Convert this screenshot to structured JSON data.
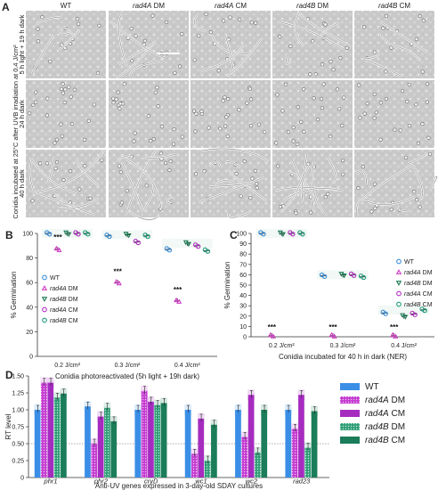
{
  "panel_a": {
    "letter": "A",
    "columns": [
      "WT",
      "rad4A DM",
      "rad4A CM",
      "rad4B DM",
      "rad4B CM"
    ],
    "row_labels": [
      "5 h light + 19 h dark",
      "24 h dark",
      "40 h dark"
    ],
    "side_label": "Conidia incubated at 25°C after UVB irradiation at 0.4 J/cm²",
    "scale_bar": true
  },
  "chart_data": [
    {
      "panel": "B",
      "type": "scatter",
      "title": "",
      "ylabel": "% Germination",
      "xlabel": "Conidia photoreactivated (5h light + 19h dark)",
      "ylim": [
        0,
        100
      ],
      "yticks": [
        0,
        20,
        40,
        60,
        80,
        100
      ],
      "categories": [
        "0.2 J/cm²",
        "0.3 J/cm²",
        "0.4 J/cm²"
      ],
      "legend_position": "left",
      "series": [
        {
          "name": "WT",
          "color": "#3a8fd8",
          "marker": "circle",
          "values": [
            100,
            98,
            87
          ]
        },
        {
          "name": "rad4A DM",
          "color": "#d13ec4",
          "marker": "triangle-up",
          "values": [
            87,
            60,
            45
          ]
        },
        {
          "name": "rad4B DM",
          "color": "#1e7a55",
          "marker": "triangle-down",
          "values": [
            100,
            99,
            92
          ]
        },
        {
          "name": "rad4A CM",
          "color": "#b030c0",
          "marker": "circle",
          "values": [
            100,
            93,
            90
          ]
        },
        {
          "name": "rad4B CM",
          "color": "#1f9a7a",
          "marker": "circle",
          "values": [
            100,
            98,
            86
          ]
        }
      ],
      "annotations": [
        {
          "text": "***",
          "category": "0.2 J/cm²",
          "y": 95
        },
        {
          "text": "***",
          "category": "0.3 J/cm²",
          "y": 67
        },
        {
          "text": "***",
          "category": "0.4 J/cm²",
          "y": 52
        }
      ]
    },
    {
      "panel": "C",
      "type": "scatter",
      "title": "",
      "ylabel": "% Germination",
      "xlabel": "Conidia incubated for 40 h in dark (NER)",
      "ylim": [
        0,
        100
      ],
      "yticks": [
        0,
        10,
        20,
        30,
        40,
        50,
        60,
        70,
        80,
        90,
        100
      ],
      "categories": [
        "0.2 J/cm²",
        "0.3 J/cm²",
        "0.4 J/cm²"
      ],
      "legend_position": "right",
      "series": [
        {
          "name": "WT",
          "color": "#3a8fd8",
          "marker": "circle",
          "values": [
            100,
            59,
            23
          ]
        },
        {
          "name": "rad4A DM",
          "color": "#d13ec4",
          "marker": "triangle-up",
          "values": [
            1,
            1,
            1
          ]
        },
        {
          "name": "rad4B DM",
          "color": "#1e7a55",
          "marker": "triangle-down",
          "values": [
            100,
            60,
            20
          ]
        },
        {
          "name": "rad4A CM",
          "color": "#b030c0",
          "marker": "circle",
          "values": [
            100,
            60,
            22
          ]
        },
        {
          "name": "rad4B CM",
          "color": "#1f9a7a",
          "marker": "circle",
          "values": [
            100,
            58,
            26
          ]
        }
      ],
      "annotations": [
        {
          "text": "***",
          "category": "0.2 J/cm²",
          "y": 7
        },
        {
          "text": "***",
          "category": "0.3 J/cm²",
          "y": 7
        },
        {
          "text": "***",
          "category": "0.4 J/cm²",
          "y": 7
        }
      ]
    },
    {
      "panel": "D",
      "type": "bar",
      "title": "",
      "ylabel": "RT level",
      "xlabel": "Anti-UV genes expressed in 3-day-old SDAY cultures",
      "ylim": [
        0,
        1.5
      ],
      "yticks": [
        0,
        0.25,
        0.5,
        0.75,
        1.0,
        1.25,
        1.5
      ],
      "ytick_labels": [
        "0",
        "0.25",
        "0.50",
        "0.75",
        "1.00",
        "1.25",
        "1.50"
      ],
      "reference_line": 0.5,
      "legend_position": "right",
      "categories": [
        "phr1",
        "phr2",
        "cryD",
        "wc1",
        "wc2",
        "rad23"
      ],
      "series": [
        {
          "name": "WT",
          "color": "#3b8ee6",
          "pattern": "solid",
          "values": [
            1.0,
            1.05,
            1.0,
            1.0,
            1.0,
            1.0
          ]
        },
        {
          "name": "rad4A DM",
          "color": "#c43ad0",
          "pattern": "dotted",
          "values": [
            1.4,
            0.5,
            1.28,
            0.35,
            0.6,
            0.72
          ]
        },
        {
          "name": "rad4A CM",
          "color": "#a62cc0",
          "pattern": "solid",
          "values": [
            1.4,
            0.9,
            1.12,
            0.87,
            1.22,
            1.22
          ]
        },
        {
          "name": "rad4B DM",
          "color": "#2f9d75",
          "pattern": "dotted",
          "values": [
            1.18,
            1.03,
            1.07,
            0.25,
            0.37,
            0.44
          ]
        },
        {
          "name": "rad4B CM",
          "color": "#1b7d5a",
          "pattern": "solid",
          "values": [
            1.24,
            0.83,
            1.1,
            0.78,
            1.0,
            0.98
          ]
        }
      ]
    }
  ]
}
